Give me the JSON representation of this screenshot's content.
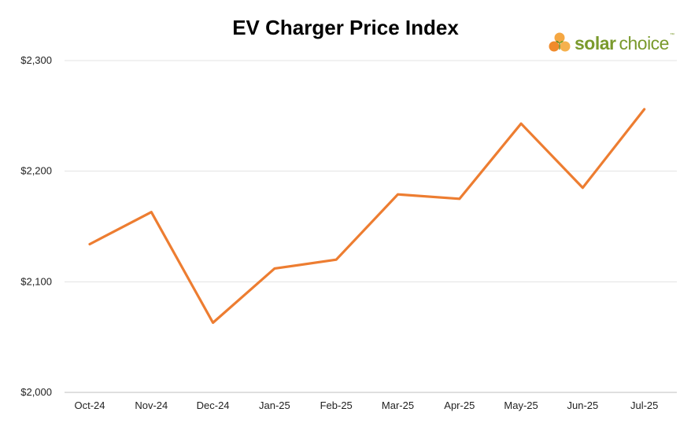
{
  "chart_data": {
    "type": "line",
    "title": "EV Charger Price Index",
    "categories": [
      "Oct-24",
      "Nov-24",
      "Dec-24",
      "Jan-25",
      "Feb-25",
      "Mar-25",
      "Apr-25",
      "May-25",
      "Jun-25",
      "Jul-25"
    ],
    "series": [
      {
        "values": [
          2134,
          2163,
          2063,
          2112,
          2120,
          2179,
          2175,
          2243,
          2185,
          2256
        ],
        "color": "#ed7d31"
      }
    ],
    "ylim": [
      2000,
      2300
    ],
    "yticks": [
      2000,
      2100,
      2200,
      2300
    ],
    "ytick_labels": [
      "$2,000",
      "$2,100",
      "$2,200",
      "$2,300"
    ],
    "grid": true,
    "xlabel": "",
    "ylabel": ""
  },
  "logo": {
    "word1": "solar",
    "word2": "choice",
    "tm": "™"
  }
}
